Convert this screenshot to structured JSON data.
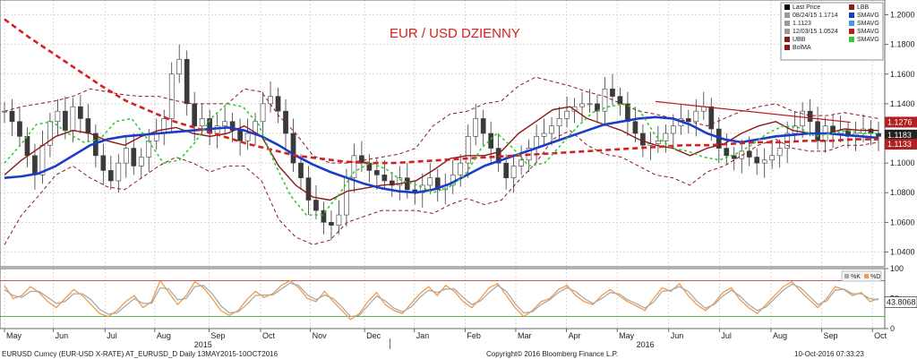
{
  "chart_data": {
    "type": "line",
    "title": "EUR / USD DZIENNY",
    "price_axis": {
      "ylim": [
        1.03,
        1.21
      ],
      "ticks": [
        "1.0400",
        "1.0600",
        "1.0800",
        "1.1000",
        "1.1200",
        "1.1400",
        "1.1600",
        "1.1800",
        "1.2000"
      ]
    },
    "oscillator_axis": {
      "ylim": [
        0,
        100
      ],
      "ticks": [
        "0",
        "50",
        "100"
      ],
      "levels": [
        80,
        20
      ]
    },
    "months": [
      "May",
      "Jun",
      "Jul",
      "Aug",
      "Sep",
      "Oct",
      "Nov",
      "Dec",
      "Jan",
      "Feb",
      "Mar",
      "Apr",
      "May",
      "Jun",
      "Jul",
      "Aug",
      "Sep",
      "Oct"
    ],
    "years": [
      "2015",
      "2016"
    ],
    "price_tags": [
      {
        "label": "1.1276",
        "value": 1.1276,
        "color": "#b02020"
      },
      {
        "label": "1.1183",
        "value": 1.1183,
        "color": "#222222"
      },
      {
        "label": "1.1133",
        "value": 1.1133,
        "color": "#b02020"
      }
    ],
    "osc_tag": {
      "label": "43.8068",
      "value": 43.8068
    },
    "osc_legend": [
      "%K",
      "%D"
    ],
    "legend": {
      "items": [
        {
          "label": "Last Price",
          "color": "#000000"
        },
        {
          "label": "08/24/15 1.1714",
          "color": "#999999"
        },
        {
          "label": "1.1123",
          "color": "#999999"
        },
        {
          "label": "12/03/15 1.0524",
          "color": "#999999"
        },
        {
          "label": "UBB",
          "color": "#8b1a1a"
        },
        {
          "label": "BolMA",
          "color": "#8b1a1a"
        }
      ],
      "items_right": [
        {
          "label": "LBB",
          "color": "#8b1a1a"
        },
        {
          "label": "SMAVG",
          "color": "#1a3cc8"
        },
        {
          "label": "SMAVG",
          "color": "#3aa0e0"
        },
        {
          "label": "SMAVG",
          "color": "#b02020"
        },
        {
          "label": "SMAVG",
          "color": "#33cc33"
        }
      ]
    },
    "series": [
      {
        "color": "#3a3a3a",
        "style": "candles",
        "values": [
          1.135,
          1.128,
          1.118,
          1.105,
          1.092,
          1.112,
          1.128,
          1.135,
          1.122,
          1.138,
          1.13,
          1.12,
          1.105,
          1.095,
          1.088,
          1.1,
          1.11,
          1.098,
          1.104,
          1.115,
          1.12,
          1.13,
          1.16,
          1.17,
          1.14,
          1.125,
          1.13,
          1.12,
          1.125,
          1.128,
          1.122,
          1.115,
          1.12,
          1.128,
          1.14,
          1.145,
          1.135,
          1.12,
          1.1,
          1.09,
          1.075,
          1.068,
          1.06,
          1.058,
          1.065,
          1.09,
          1.105,
          1.1,
          1.095,
          1.092,
          1.088,
          1.085,
          1.09,
          1.082,
          1.08,
          1.085,
          1.09,
          1.082,
          1.085,
          1.092,
          1.1,
          1.118,
          1.13,
          1.12,
          1.11,
          1.1,
          1.09,
          1.098,
          1.102,
          1.11,
          1.118,
          1.12,
          1.125,
          1.13,
          1.135,
          1.138,
          1.14,
          1.14,
          1.135,
          1.15,
          1.145,
          1.14,
          1.128,
          1.12,
          1.112,
          1.113,
          1.115,
          1.12,
          1.125,
          1.13,
          1.128,
          1.135,
          1.138,
          1.123,
          1.11,
          1.105,
          1.103,
          1.108,
          1.104,
          1.1,
          1.102,
          1.105,
          1.11,
          1.12,
          1.125,
          1.135,
          1.128,
          1.115,
          1.125,
          1.12,
          1.122,
          1.118,
          1.12,
          1.123,
          1.12,
          1.118
        ]
      },
      {
        "color": "#8b1a1a",
        "width": 1.4,
        "values": [
          1.092,
          1.102,
          1.11,
          1.118,
          1.122,
          1.12,
          1.115,
          1.112,
          1.118,
          1.122,
          1.124,
          1.12,
          1.118,
          1.12,
          1.125,
          1.118,
          1.098,
          1.085,
          1.077,
          1.075,
          1.081,
          1.083,
          1.085,
          1.086,
          1.088,
          1.095,
          1.103,
          1.105,
          1.105,
          1.108,
          1.12,
          1.128,
          1.136,
          1.138,
          1.13,
          1.126,
          1.122,
          1.116,
          1.112,
          1.11,
          1.105,
          1.11,
          1.113,
          1.12,
          1.125,
          1.128,
          1.122,
          1.12,
          1.12,
          1.123,
          1.122,
          1.122
        ]
      },
      {
        "color": "#8b1a1a",
        "width": 1,
        "dash": "4,3",
        "values": [
          1.135,
          1.138,
          1.14,
          1.142,
          1.145,
          1.15,
          1.148,
          1.146,
          1.145,
          1.145,
          1.142,
          1.14,
          1.14,
          1.14,
          1.15,
          1.148,
          1.132,
          1.12,
          1.105,
          1.1,
          1.1,
          1.102,
          1.104,
          1.106,
          1.11,
          1.125,
          1.133,
          1.135,
          1.14,
          1.142,
          1.152,
          1.158,
          1.155,
          1.152,
          1.148,
          1.145,
          1.14,
          1.135,
          1.133,
          1.13,
          1.128,
          1.125,
          1.13,
          1.135,
          1.138,
          1.14,
          1.135,
          1.132,
          1.132,
          1.134,
          1.132,
          1.13
        ]
      },
      {
        "color": "#8b1a1a",
        "width": 1,
        "dash": "4,3",
        "values": [
          1.045,
          1.065,
          1.078,
          1.092,
          1.098,
          1.09,
          1.084,
          1.082,
          1.09,
          1.098,
          1.104,
          1.1,
          1.094,
          1.098,
          1.098,
          1.088,
          1.062,
          1.05,
          1.045,
          1.048,
          1.06,
          1.064,
          1.068,
          1.068,
          1.068,
          1.066,
          1.072,
          1.076,
          1.072,
          1.075,
          1.088,
          1.1,
          1.116,
          1.122,
          1.112,
          1.106,
          1.104,
          1.098,
          1.092,
          1.09,
          1.085,
          1.094,
          1.098,
          1.105,
          1.112,
          1.116,
          1.11,
          1.108,
          1.108,
          1.112,
          1.112,
          1.114
        ]
      },
      {
        "color": "#1a3cc8",
        "width": 2.6,
        "values": [
          1.09,
          1.091,
          1.093,
          1.098,
          1.105,
          1.112,
          1.116,
          1.118,
          1.119,
          1.12,
          1.121,
          1.122,
          1.123,
          1.124,
          1.122,
          1.118,
          1.112,
          1.105,
          1.099,
          1.094,
          1.09,
          1.086,
          1.083,
          1.081,
          1.08,
          1.082,
          1.086,
          1.092,
          1.098,
          1.102,
          1.106,
          1.11,
          1.114,
          1.118,
          1.122,
          1.126,
          1.128,
          1.13,
          1.131,
          1.13,
          1.126,
          1.12,
          1.116,
          1.114,
          1.116,
          1.118,
          1.119,
          1.12,
          1.12,
          1.119,
          1.118,
          1.117
        ]
      },
      {
        "color": "#d42020",
        "width": 2.6,
        "dash": "6,4",
        "values": [
          1.197,
          1.185,
          1.174,
          1.163,
          1.152,
          1.142,
          1.135,
          1.128,
          1.123,
          1.118,
          1.113,
          1.109,
          1.105,
          1.103,
          1.101,
          1.1,
          1.1,
          1.101,
          1.102,
          1.103,
          1.104,
          1.105,
          1.106,
          1.107,
          1.108,
          1.109,
          1.11,
          1.111,
          1.112,
          1.112,
          1.113,
          1.114,
          1.114,
          1.115,
          1.115,
          1.116,
          1.116
        ]
      },
      {
        "color": "#33cc33",
        "width": 1.6,
        "dash": "3,3",
        "values": [
          1.1,
          1.112,
          1.126,
          1.128,
          1.12,
          1.114,
          1.116,
          1.128,
          1.13,
          1.116,
          1.1,
          1.102,
          1.114,
          1.13,
          1.14,
          1.138,
          1.126,
          1.1,
          1.078,
          1.065,
          1.065,
          1.078,
          1.094,
          1.1,
          1.096,
          1.088,
          1.085,
          1.08,
          1.084,
          1.092,
          1.11,
          1.12,
          1.11,
          1.098,
          1.1,
          1.112,
          1.124,
          1.134,
          1.138,
          1.14,
          1.135,
          1.118,
          1.11,
          1.108,
          1.104,
          1.102,
          1.106,
          1.112,
          1.12,
          1.125,
          1.124,
          1.118,
          1.12,
          1.122,
          1.12,
          1.12
        ]
      }
    ],
    "trendline": {
      "x": [
        0.745,
        0.968
      ],
      "y": [
        1.1415,
        1.1275
      ],
      "color": "#c01818"
    },
    "oscillator_series": [
      {
        "color": "#f09a4a",
        "width": 1.3,
        "values": [
          72,
          50,
          55,
          70,
          60,
          45,
          35,
          50,
          65,
          55,
          40,
          25,
          20,
          30,
          45,
          55,
          35,
          45,
          80,
          60,
          40,
          55,
          78,
          68,
          50,
          30,
          22,
          30,
          48,
          62,
          52,
          58,
          72,
          80,
          68,
          50,
          45,
          62,
          45,
          30,
          15,
          25,
          45,
          60,
          40,
          30,
          25,
          42,
          58,
          70,
          55,
          72,
          62,
          45,
          35,
          50,
          68,
          75,
          55,
          35,
          20,
          30,
          45,
          50,
          65,
          72,
          55,
          45,
          40,
          55,
          65,
          55,
          45,
          38,
          30,
          50,
          68,
          62,
          75,
          55,
          40,
          30,
          42,
          60,
          68,
          48,
          35,
          25,
          40,
          55,
          70,
          78,
          62,
          48,
          35,
          50,
          70,
          65,
          55,
          60,
          45,
          50
        ]
      },
      {
        "color": "#aaaaaa",
        "width": 1.3,
        "values": [
          65,
          55,
          52,
          62,
          62,
          52,
          42,
          45,
          58,
          58,
          48,
          32,
          24,
          26,
          38,
          50,
          42,
          42,
          68,
          66,
          48,
          50,
          70,
          72,
          58,
          38,
          26,
          28,
          40,
          55,
          56,
          56,
          66,
          76,
          72,
          56,
          48,
          56,
          50,
          36,
          20,
          22,
          38,
          54,
          46,
          34,
          28,
          36,
          52,
          64,
          60,
          66,
          66,
          52,
          40,
          46,
          60,
          72,
          62,
          42,
          26,
          28,
          40,
          48,
          60,
          68,
          62,
          50,
          42,
          50,
          60,
          58,
          48,
          42,
          34,
          44,
          62,
          64,
          70,
          62,
          46,
          34,
          40,
          54,
          64,
          54,
          40,
          30,
          36,
          50,
          64,
          74,
          68,
          54,
          40,
          46,
          64,
          66,
          58,
          58,
          50,
          48
        ]
      }
    ]
  }
}
